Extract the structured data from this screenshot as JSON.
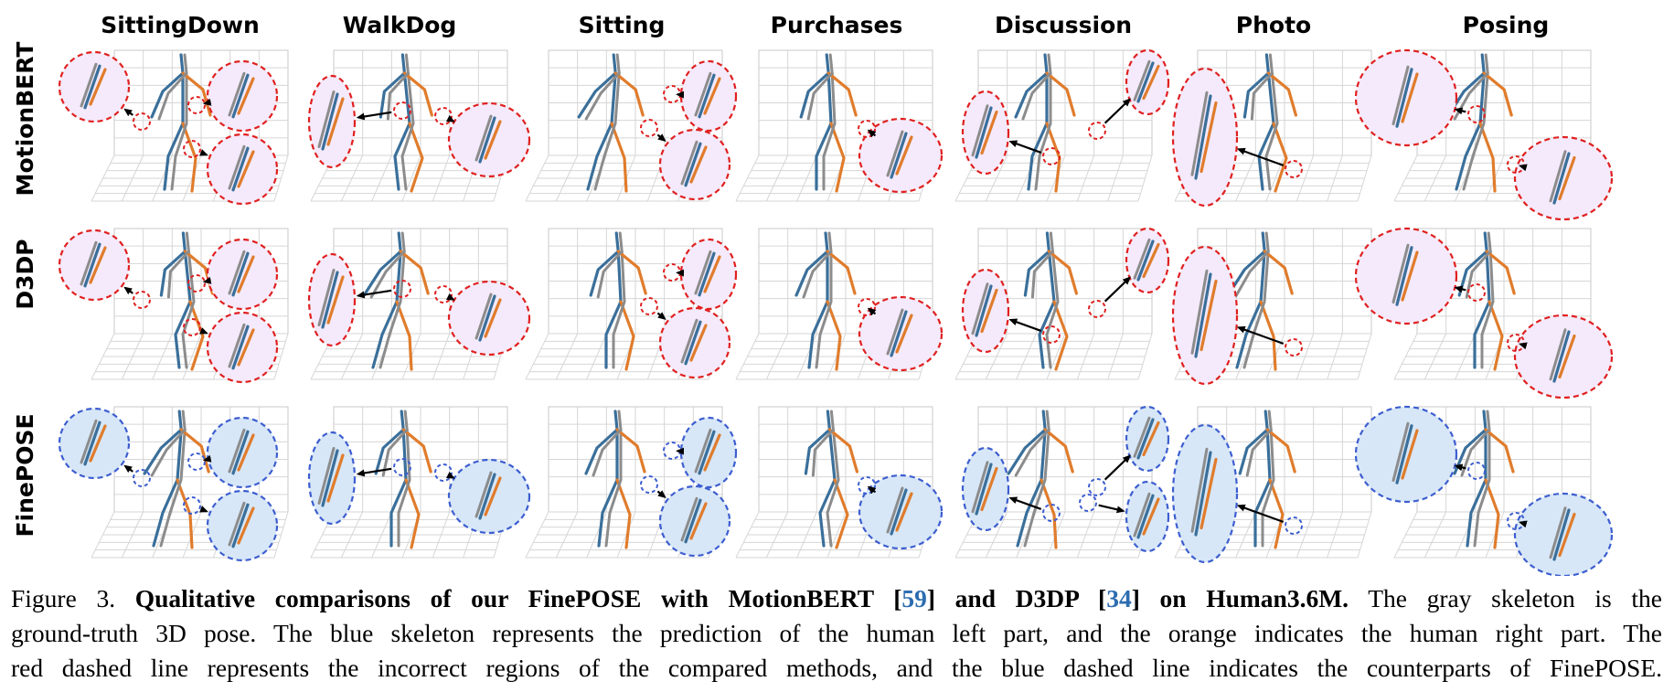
{
  "figure": {
    "columns": [
      "SittingDown",
      "WalkDog",
      "Sitting",
      "Purchases",
      "Discussion",
      "Photo",
      "Posing"
    ],
    "rows": [
      "MotionBERT",
      "D3DP",
      "FinePOSE"
    ],
    "colors": {
      "ground_truth": "#8c8c8c",
      "left_part": "#3a6f9a",
      "right_part": "#e07c2c",
      "incorrect_region": "#e02020",
      "counterpart_region": "#3d5ed0"
    }
  },
  "caption": {
    "label": "Figure 3.",
    "title_a": "Qualitative comparisons of our FinePOSE with MotionBERT [",
    "ref1": "59",
    "title_b": "] and D3DP [",
    "ref2": "34",
    "title_c": "] on Human3.6M.",
    "text1": "The gray skeleton is the",
    "line2": "ground-truth 3D pose. The blue skeleton represents the prediction of the human left part, and the orange indicates the human right part. The",
    "line3": "red dashed line represents the incorrect regions of the compared methods, and the blue dashed line indicates the counterparts of FinePOSE."
  }
}
